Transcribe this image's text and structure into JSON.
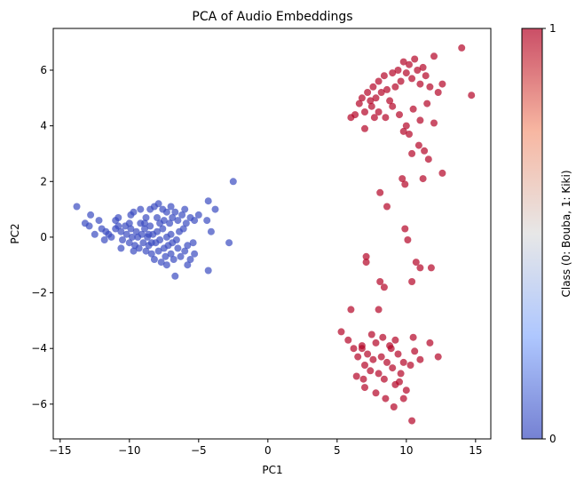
{
  "chart_data": {
    "type": "scatter",
    "title": "PCA of Audio Embeddings",
    "xlabel": "PC1",
    "ylabel": "PC2",
    "xlim": [
      -15.5,
      16.1
    ],
    "ylim": [
      -7.25,
      7.5
    ],
    "xticks": [
      -15,
      -10,
      -5,
      0,
      5,
      10,
      15
    ],
    "yticks": [
      -6,
      -4,
      -2,
      0,
      2,
      4,
      6
    ],
    "grid": false,
    "colormap": "coolwarm",
    "marker_alpha": 0.7,
    "colorbar": {
      "label": "Class (0: Bouba, 1: Kiki)",
      "range": [
        0,
        1
      ],
      "ticks": [
        0,
        1
      ],
      "color_low": "#3b4cc0",
      "color_mid": "#dddddd",
      "color_high": "#b40426"
    },
    "series": [
      {
        "class_value": 0,
        "color": "#3b4cc0",
        "points": [
          [
            -13.8,
            1.1
          ],
          [
            -13.2,
            0.5
          ],
          [
            -12.8,
            0.8
          ],
          [
            -12.5,
            0.1
          ],
          [
            -12.2,
            0.6
          ],
          [
            -12.0,
            0.3
          ],
          [
            -11.7,
            0.2
          ],
          [
            -11.5,
            0.1
          ],
          [
            -11.3,
            0.0
          ],
          [
            -11.0,
            0.3
          ],
          [
            -10.8,
            0.7
          ],
          [
            -10.6,
            0.2
          ],
          [
            -10.5,
            -0.1
          ],
          [
            -10.3,
            0.4
          ],
          [
            -10.2,
            0.1
          ],
          [
            -10.0,
            -0.2
          ],
          [
            -9.9,
            0.3
          ],
          [
            -9.8,
            0.0
          ],
          [
            -9.6,
            -0.3
          ],
          [
            -9.5,
            0.2
          ],
          [
            -9.4,
            0.0
          ],
          [
            -9.3,
            -0.4
          ],
          [
            -9.2,
            0.5
          ],
          [
            -9.1,
            0.1
          ],
          [
            -9.0,
            -0.2
          ],
          [
            -8.9,
            0.3
          ],
          [
            -8.8,
            -0.5
          ],
          [
            -8.7,
            0.0
          ],
          [
            -8.6,
            -0.3
          ],
          [
            -8.5,
            0.4
          ],
          [
            -8.4,
            -0.6
          ],
          [
            -8.3,
            0.1
          ],
          [
            -8.2,
            -0.8
          ],
          [
            -8.1,
            -0.2
          ],
          [
            -8.0,
            0.2
          ],
          [
            -7.9,
            -0.5
          ],
          [
            -7.8,
            -0.1
          ],
          [
            -7.7,
            -0.9
          ],
          [
            -7.6,
            0.3
          ],
          [
            -7.5,
            -0.4
          ],
          [
            -7.4,
            -0.7
          ],
          [
            -7.3,
            0.0
          ],
          [
            -7.2,
            -0.3
          ],
          [
            -7.1,
            0.5
          ],
          [
            -7.0,
            -0.6
          ],
          [
            -6.9,
            -0.2
          ],
          [
            -6.8,
            -0.8
          ],
          [
            -6.5,
            -0.4
          ],
          [
            -6.3,
            -0.7
          ],
          [
            -6.0,
            -0.5
          ],
          [
            -5.8,
            -0.3
          ],
          [
            -5.6,
            -0.8
          ],
          [
            -5.3,
            -0.6
          ],
          [
            -6.7,
            -1.4
          ],
          [
            -7.3,
            -1.0
          ],
          [
            -4.3,
            -1.2
          ],
          [
            -5.8,
            -1.0
          ],
          [
            -9.7,
            0.9
          ],
          [
            -9.2,
            1.0
          ],
          [
            -8.8,
            0.7
          ],
          [
            -8.5,
            1.0
          ],
          [
            -8.2,
            1.1
          ],
          [
            -7.9,
            1.2
          ],
          [
            -7.6,
            1.0
          ],
          [
            -7.3,
            0.9
          ],
          [
            -7.0,
            1.1
          ],
          [
            -6.7,
            0.9
          ],
          [
            -6.5,
            0.6
          ],
          [
            -6.2,
            0.8
          ],
          [
            -5.9,
            0.5
          ],
          [
            -5.6,
            0.7
          ],
          [
            -5.3,
            0.6
          ],
          [
            -8.9,
            0.5
          ],
          [
            -8.0,
            0.7
          ],
          [
            -7.5,
            0.6
          ],
          [
            -6.9,
            0.7
          ],
          [
            -6.0,
            1.0
          ],
          [
            -5.0,
            0.8
          ],
          [
            -4.4,
            0.6
          ],
          [
            -4.3,
            1.3
          ],
          [
            -3.8,
            1.0
          ],
          [
            -4.1,
            0.2
          ],
          [
            -2.8,
            -0.2
          ],
          [
            -2.5,
            2.0
          ],
          [
            -9.9,
            0.8
          ],
          [
            -11.0,
            0.6
          ],
          [
            -10.0,
            0.5
          ],
          [
            -7.0,
            0.1
          ],
          [
            -6.6,
            -0.1
          ],
          [
            -6.1,
            0.3
          ],
          [
            -5.4,
            -0.2
          ],
          [
            -6.4,
            0.2
          ],
          [
            -8.6,
            0.1
          ],
          [
            -9.7,
            -0.5
          ],
          [
            -10.8,
            0.4
          ],
          [
            -11.8,
            -0.1
          ],
          [
            -12.9,
            0.4
          ],
          [
            -10.6,
            -0.4
          ],
          [
            -8.4,
            -0.2
          ],
          [
            -7.8,
            0.5
          ]
        ]
      },
      {
        "class_value": 1,
        "color": "#b40426",
        "points": [
          [
            6.0,
            4.3
          ],
          [
            6.3,
            4.4
          ],
          [
            6.6,
            4.8
          ],
          [
            6.8,
            5.0
          ],
          [
            7.0,
            4.5
          ],
          [
            7.2,
            5.2
          ],
          [
            7.4,
            4.9
          ],
          [
            7.6,
            5.4
          ],
          [
            7.8,
            5.0
          ],
          [
            8.0,
            5.6
          ],
          [
            8.2,
            5.2
          ],
          [
            8.4,
            5.8
          ],
          [
            8.6,
            5.3
          ],
          [
            8.8,
            4.9
          ],
          [
            9.0,
            5.9
          ],
          [
            9.2,
            5.4
          ],
          [
            9.4,
            6.0
          ],
          [
            9.6,
            5.6
          ],
          [
            9.8,
            6.3
          ],
          [
            10.0,
            5.9
          ],
          [
            10.2,
            6.2
          ],
          [
            10.4,
            5.7
          ],
          [
            10.6,
            6.4
          ],
          [
            10.8,
            6.0
          ],
          [
            11.0,
            5.5
          ],
          [
            11.2,
            6.1
          ],
          [
            11.4,
            5.8
          ],
          [
            11.7,
            5.4
          ],
          [
            12.0,
            6.5
          ],
          [
            12.3,
            5.2
          ],
          [
            12.6,
            5.5
          ],
          [
            14.0,
            6.8
          ],
          [
            14.7,
            5.1
          ],
          [
            7.5,
            4.7
          ],
          [
            8.0,
            4.5
          ],
          [
            8.5,
            4.3
          ],
          [
            9.0,
            4.7
          ],
          [
            9.5,
            4.4
          ],
          [
            10.0,
            4.0
          ],
          [
            10.5,
            4.6
          ],
          [
            11.0,
            4.2
          ],
          [
            11.5,
            4.8
          ],
          [
            12.0,
            4.1
          ],
          [
            7.0,
            3.9
          ],
          [
            7.7,
            4.3
          ],
          [
            9.8,
            3.8
          ],
          [
            10.2,
            3.7
          ],
          [
            10.9,
            3.3
          ],
          [
            11.3,
            3.1
          ],
          [
            11.6,
            2.8
          ],
          [
            12.6,
            2.3
          ],
          [
            10.4,
            3.0
          ],
          [
            9.7,
            2.1
          ],
          [
            9.9,
            1.9
          ],
          [
            11.2,
            2.1
          ],
          [
            8.1,
            1.6
          ],
          [
            8.6,
            1.1
          ],
          [
            9.9,
            0.3
          ],
          [
            10.1,
            -0.1
          ],
          [
            10.7,
            -0.9
          ],
          [
            11.0,
            -1.1
          ],
          [
            11.8,
            -1.1
          ],
          [
            7.1,
            -0.7
          ],
          [
            7.1,
            -0.9
          ],
          [
            8.1,
            -1.6
          ],
          [
            8.4,
            -1.8
          ],
          [
            8.0,
            -2.6
          ],
          [
            6.0,
            -2.6
          ],
          [
            10.4,
            -1.6
          ],
          [
            5.3,
            -3.4
          ],
          [
            5.8,
            -3.7
          ],
          [
            6.2,
            -4.0
          ],
          [
            6.5,
            -4.3
          ],
          [
            6.8,
            -3.9
          ],
          [
            7.0,
            -4.6
          ],
          [
            7.2,
            -4.2
          ],
          [
            7.4,
            -4.8
          ],
          [
            7.6,
            -4.4
          ],
          [
            7.8,
            -3.8
          ],
          [
            8.0,
            -4.9
          ],
          [
            8.2,
            -4.3
          ],
          [
            8.4,
            -5.1
          ],
          [
            8.6,
            -4.5
          ],
          [
            8.8,
            -3.9
          ],
          [
            9.0,
            -4.7
          ],
          [
            9.2,
            -5.3
          ],
          [
            9.4,
            -4.2
          ],
          [
            9.6,
            -4.9
          ],
          [
            9.8,
            -4.5
          ],
          [
            10.0,
            -5.5
          ],
          [
            10.3,
            -4.6
          ],
          [
            10.6,
            -4.1
          ],
          [
            11.0,
            -4.4
          ],
          [
            11.7,
            -3.8
          ],
          [
            12.3,
            -4.3
          ],
          [
            6.4,
            -5.0
          ],
          [
            7.0,
            -5.4
          ],
          [
            7.8,
            -5.6
          ],
          [
            8.5,
            -5.8
          ],
          [
            9.1,
            -6.1
          ],
          [
            9.8,
            -5.8
          ],
          [
            10.4,
            -6.6
          ],
          [
            6.8,
            -4.0
          ],
          [
            7.5,
            -3.5
          ],
          [
            8.3,
            -3.6
          ],
          [
            9.2,
            -3.7
          ],
          [
            10.5,
            -3.6
          ],
          [
            6.9,
            -5.1
          ],
          [
            8.9,
            -4.0
          ],
          [
            9.5,
            -5.2
          ]
        ]
      }
    ]
  }
}
